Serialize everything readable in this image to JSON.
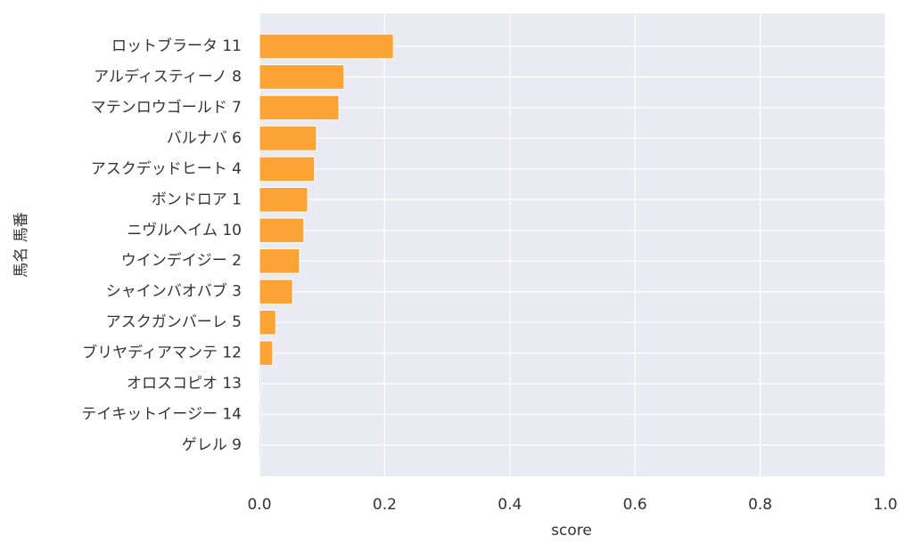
{
  "chart_data": {
    "type": "barh",
    "xlabel": "score",
    "ylabel": "馬名 馬番",
    "categories": [
      "ロットブラータ 11",
      "アルディスティーノ 8",
      "マテンロウゴールド 7",
      "バルナバ 6",
      "アスクデッドヒート 4",
      "ボンドロア 1",
      "ニヴルヘイム 10",
      "ウインデイジー 2",
      "シャインバオバブ 3",
      "アスクガンバーレ 5",
      "ブリヤディアマンテ 12",
      "オロスコピオ 13",
      "テイキットイージー 14",
      "ゲレル 9"
    ],
    "values": [
      0.214,
      0.135,
      0.127,
      0.091,
      0.088,
      0.077,
      0.071,
      0.064,
      0.053,
      0.026,
      0.021,
      0.002,
      0.002,
      0.002
    ],
    "color": "#fca335",
    "xlim": [
      0,
      1
    ],
    "xticks": [
      {
        "value": 0,
        "label": "0.0"
      },
      {
        "value": 0.2,
        "label": "0.2"
      },
      {
        "value": 0.4,
        "label": "0.4"
      },
      {
        "value": 0.6,
        "label": "0.6"
      },
      {
        "value": 0.8,
        "label": "0.8"
      },
      {
        "value": 1,
        "label": "1.0"
      }
    ],
    "grid": true
  }
}
